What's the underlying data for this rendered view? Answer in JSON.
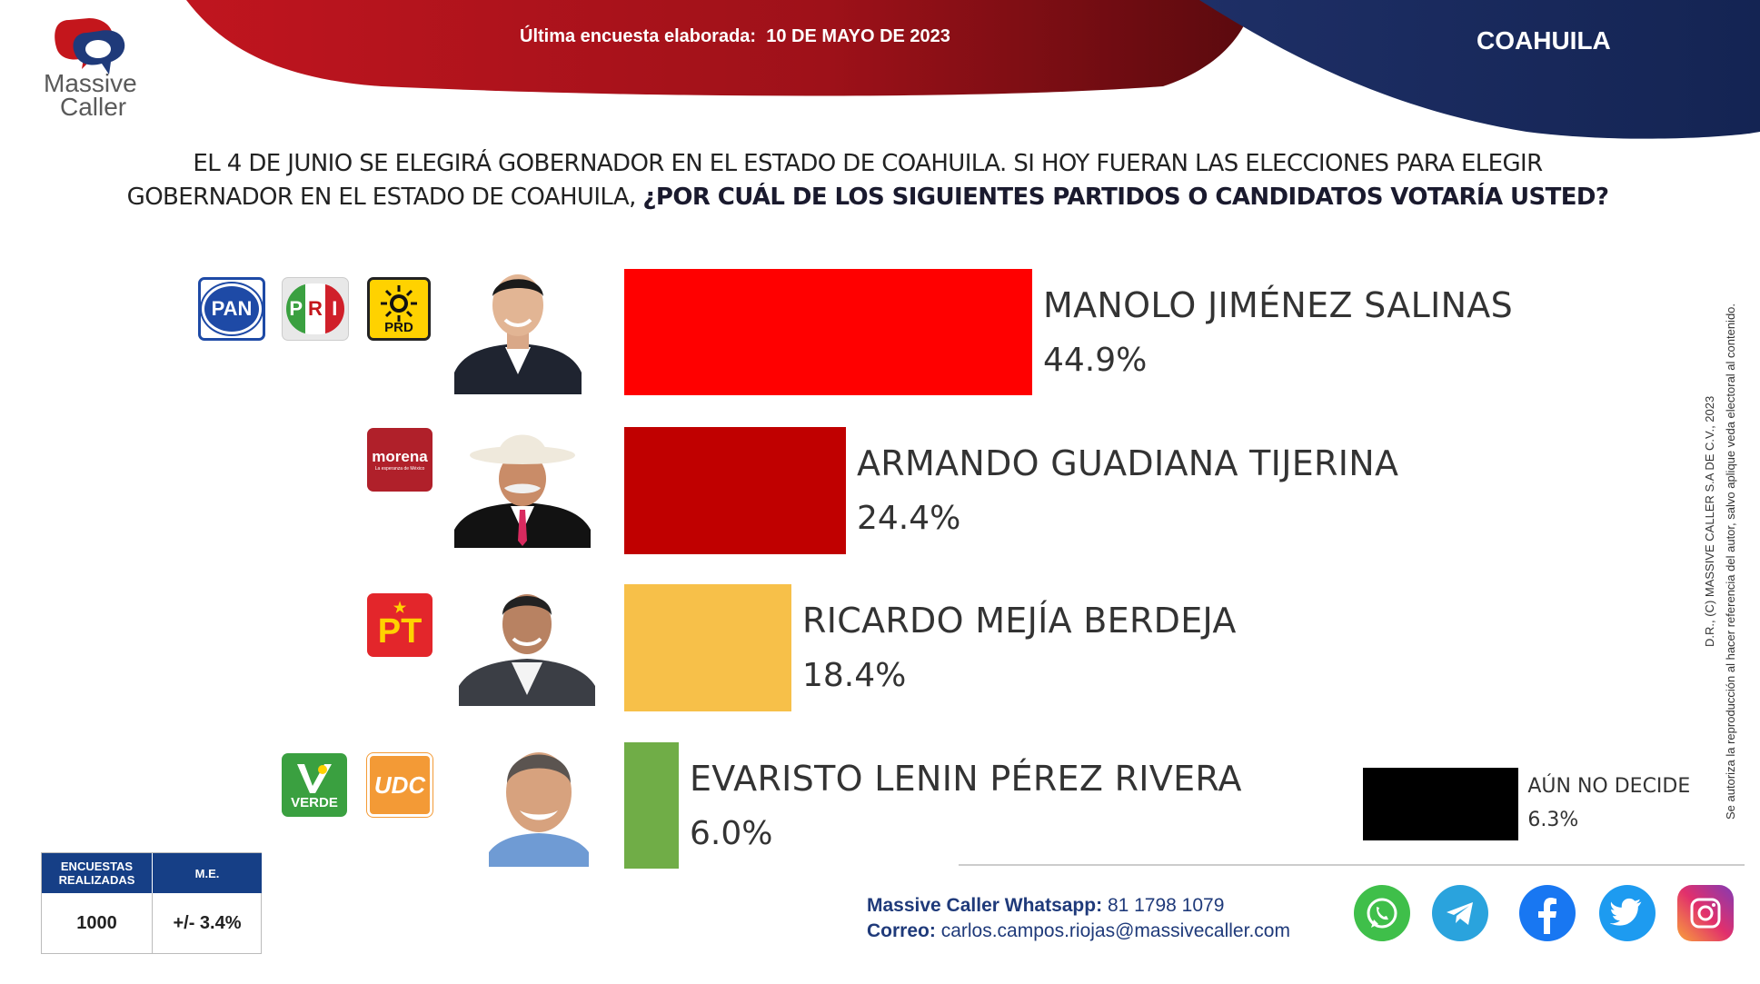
{
  "header": {
    "survey_label": "Última encuesta elaborada:",
    "survey_date": "10 DE MAYO DE 2023",
    "state": "COAHUILA"
  },
  "brand": {
    "line1": "Massive",
    "line2": "Caller"
  },
  "question": {
    "line1": "EL 4 DE JUNIO SE ELEGIRÁ GOBERNADOR EN EL ESTADO DE COAHUILA. SI HOY FUERAN LAS ELECCIONES PARA ELEGIR",
    "line2_normal": "GOBERNADOR EN EL ESTADO DE COAHUILA,",
    "line2_bold": "¿POR CUÁL DE LOS SIGUIENTES PARTIDOS O CANDIDATOS VOTARÍA USTED?"
  },
  "parties": {
    "pan": "PAN",
    "pri": [
      "P",
      "R",
      "I"
    ],
    "prd": "PRD",
    "morena": "morena",
    "morena_sub": "La esperanza de México",
    "pt": "PT",
    "verde": "VERDE",
    "udc": "UDC"
  },
  "chart_data": {
    "type": "bar",
    "orientation": "horizontal",
    "xlim": [
      0,
      60
    ],
    "categories": [
      "MANOLO JIMÉNEZ SALINAS",
      "ARMANDO GUADIANA TIJERINA",
      "RICARDO MEJÍA BERDEJA",
      "EVARISTO LENIN PÉREZ RIVERA",
      "AÚN NO DECIDE"
    ],
    "values": [
      44.9,
      24.4,
      18.4,
      6.0,
      6.3
    ],
    "labels": [
      "44.9%",
      "24.4%",
      "18.4%",
      "6.0%",
      "6.3%"
    ],
    "colors": [
      "#ff0000",
      "#c00000",
      "#f7c049",
      "#70ad47",
      "#000000"
    ]
  },
  "stats": {
    "col1_header": "ENCUESTAS REALIZADAS",
    "col2_header": "M.E.",
    "col1_value": "1000",
    "col2_value": "+/- 3.4%"
  },
  "contact": {
    "whatsapp_label": "Massive Caller Whatsapp:",
    "whatsapp_number": "81 1798 1079",
    "email_label": "Correo:",
    "email": "carlos.campos.riojas@massivecaller.com"
  },
  "copyright": {
    "line1": "D.R., (C) MASSIVE CALLER S.A DE C.V., 2023",
    "line2": "Se autoriza la reproducción al hacer referencia del autor, salvo aplique veda electoral al contenido."
  },
  "icons": [
    "whatsapp-icon",
    "telegram-icon",
    "facebook-icon",
    "twitter-icon",
    "instagram-icon"
  ]
}
